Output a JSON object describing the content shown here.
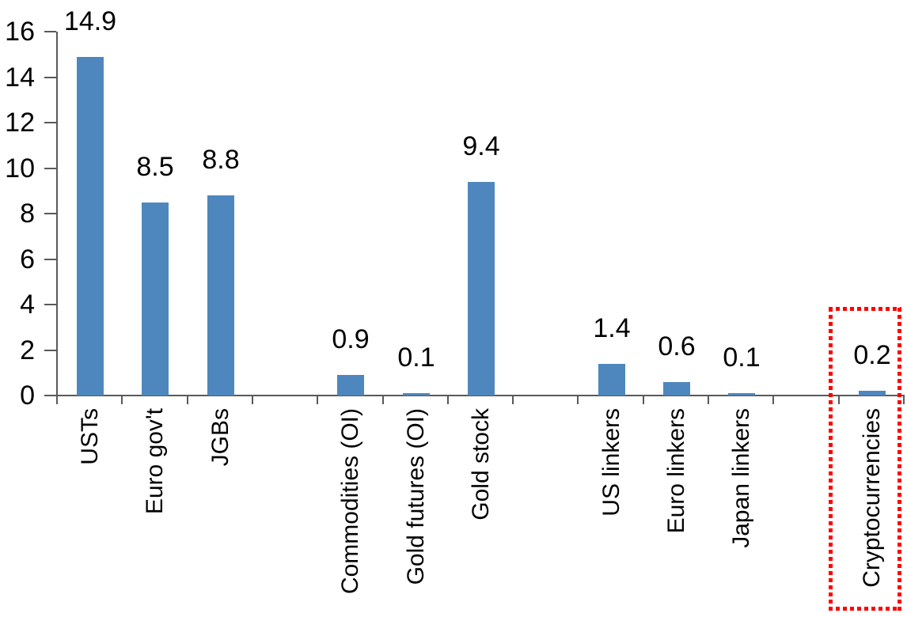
{
  "chart_data": {
    "type": "bar",
    "title": "",
    "xlabel": "",
    "ylabel": "",
    "categories": [
      "USTs",
      "Euro gov't",
      "JGBs",
      "Commodities (OI)",
      "Gold futures (OI)",
      "Gold stock",
      "US linkers",
      "Euro linkers",
      "Japan linkers",
      "Cryptocurrencies"
    ],
    "values": [
      14.9,
      8.5,
      8.8,
      0.9,
      0.1,
      9.4,
      1.4,
      0.6,
      0.1,
      0.2
    ],
    "data_labels": [
      "14.9",
      "8.5",
      "8.8",
      "0.9",
      "0.1",
      "9.4",
      "1.4",
      "0.6",
      "0.1",
      "0.2"
    ],
    "slot_indices": [
      0,
      1,
      2,
      4,
      5,
      6,
      8,
      9,
      10,
      12
    ],
    "total_slots": 13,
    "groups": [
      [
        "USTs",
        "Euro gov't",
        "JGBs"
      ],
      [
        "Commodities (OI)",
        "Gold futures (OI)",
        "Gold stock"
      ],
      [
        "US linkers",
        "Euro linkers",
        "Japan linkers"
      ],
      [
        "Cryptocurrencies"
      ]
    ],
    "y_axis": {
      "min": 0,
      "max": 16,
      "ticks": [
        0,
        2,
        4,
        6,
        8,
        10,
        12,
        14,
        16
      ]
    },
    "x_axis": {
      "label_rotation_deg": 90
    },
    "legend": "none",
    "grid": "off",
    "colors": {
      "bar": "#4e87bd",
      "axis": "#595959",
      "text": "#000000",
      "highlight_box": "#ff0000"
    },
    "highlight": {
      "category": "Cryptocurrencies",
      "style": "red-dotted-box"
    }
  }
}
